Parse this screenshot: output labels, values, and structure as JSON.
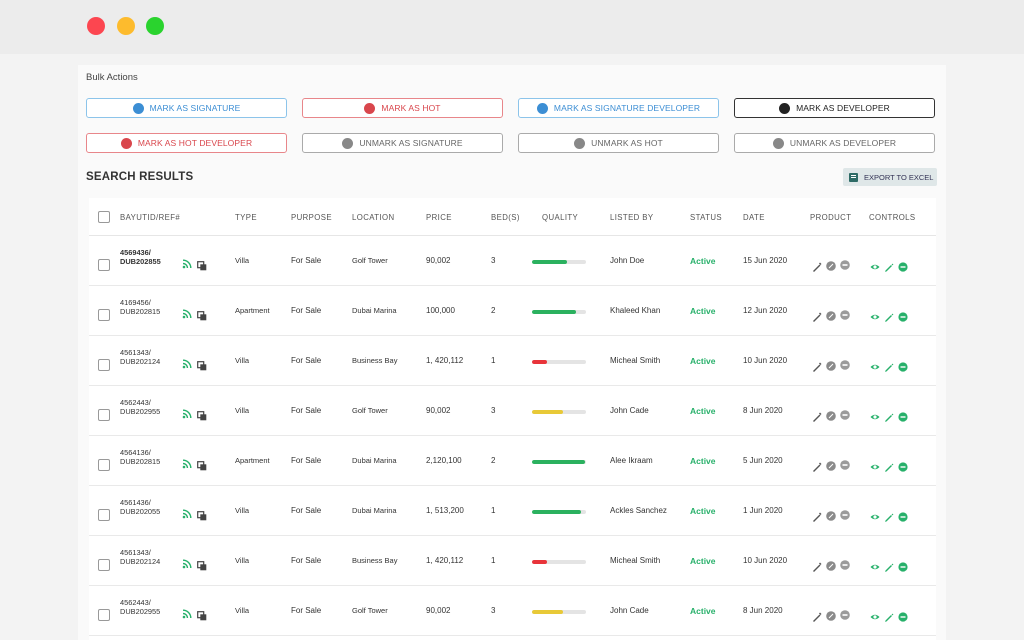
{
  "bulk": {
    "title": "Bulk Actions",
    "buttons": [
      {
        "label": "MARK AS SIGNATURE",
        "icon": "signature-icon",
        "style": "blue"
      },
      {
        "label": "MARK AS HOT",
        "icon": "hot-icon",
        "style": "red"
      },
      {
        "label": "MARK AS SIGNATURE DEVELOPER",
        "icon": "signature-developer-icon",
        "style": "blue"
      },
      {
        "label": "MARK AS DEVELOPER",
        "icon": "developer-icon",
        "style": "dark"
      },
      {
        "label": "MARK AS HOT DEVELOPER",
        "icon": "hot-developer-icon",
        "style": "red"
      },
      {
        "label": "UNMARK AS SIGNATURE",
        "icon": "signature-icon",
        "style": "gray"
      },
      {
        "label": "UNMARK AS HOT",
        "icon": "hot-icon",
        "style": "gray"
      },
      {
        "label": "UNMARK AS DEVELOPER",
        "icon": "developer-icon",
        "style": "gray"
      }
    ]
  },
  "results": {
    "title": "SEARCH RESULTS",
    "export_label": "EXPORT TO EXCEL"
  },
  "colors": {
    "quality_green": "#2bb15f",
    "quality_red": "#e8343a",
    "quality_yellow": "#e8c937",
    "status_active": "#27b06a",
    "blue": "#3c8ed4",
    "red": "#d9464c"
  },
  "columns": [
    "BAYUTID/REF#",
    "TYPE",
    "PURPOSE",
    "LOCATION",
    "PRICE",
    "BED(S)",
    "QUALITY",
    "LISTED BY",
    "STATUS",
    "DATE",
    "PRODUCT",
    "CONTROLS"
  ],
  "rows": [
    {
      "id": "4569436/",
      "ref": "DUB202855",
      "type": "Villa",
      "purpose": "For Sale",
      "location": "Golf Tower",
      "price": "90,002",
      "beds": "3",
      "quality": 0.65,
      "quality_color": "green",
      "listed_by": "John Doe",
      "status": "Active",
      "date": "15 Jun 2020"
    },
    {
      "id": "4169456/",
      "ref": "DUB202815",
      "type": "Apartment",
      "purpose": "For Sale",
      "location": "Dubai Marina",
      "price": "100,000",
      "beds": "2",
      "quality": 0.82,
      "quality_color": "green",
      "listed_by": "Khaleed Khan",
      "status": "Active",
      "date": "12 Jun 2020"
    },
    {
      "id": "4561343/",
      "ref": "DUB202124",
      "type": "Villa",
      "purpose": "For Sale",
      "location": "Business Bay",
      "price": "1, 420,112",
      "beds": "1",
      "quality": 0.27,
      "quality_color": "red",
      "listed_by": "Micheal Smith",
      "status": "Active",
      "date": "10 Jun 2020"
    },
    {
      "id": "4562443/",
      "ref": "DUB202955",
      "type": "Villa",
      "purpose": "For Sale",
      "location": "Golf Tower",
      "price": "90,002",
      "beds": "3",
      "quality": 0.57,
      "quality_color": "yellow",
      "listed_by": "John Cade",
      "status": "Active",
      "date": "8 Jun 2020"
    },
    {
      "id": "4564136/",
      "ref": "DUB202815",
      "type": "Apartment",
      "purpose": "For Sale",
      "location": "Dubai Marina",
      "price": "2,120,100",
      "beds": "2",
      "quality": 0.98,
      "quality_color": "green",
      "listed_by": "Alee Ikraam",
      "status": "Active",
      "date": "5 Jun 2020"
    },
    {
      "id": "4561436/",
      "ref": "DUB202055",
      "type": "Villa",
      "purpose": "For Sale",
      "location": "Dubai Marina",
      "price": "1, 513,200",
      "beds": "1",
      "quality": 0.9,
      "quality_color": "green",
      "listed_by": "Ackles Sanchez",
      "status": "Active",
      "date": "1 Jun 2020"
    },
    {
      "id": "4561343/",
      "ref": "DUB202124",
      "type": "Villa",
      "purpose": "For Sale",
      "location": "Business Bay",
      "price": "1, 420,112",
      "beds": "1",
      "quality": 0.27,
      "quality_color": "red",
      "listed_by": "Micheal Smith",
      "status": "Active",
      "date": "10 Jun 2020"
    },
    {
      "id": "4562443/",
      "ref": "DUB202955",
      "type": "Villa",
      "purpose": "For Sale",
      "location": "Golf Tower",
      "price": "90,002",
      "beds": "3",
      "quality": 0.57,
      "quality_color": "yellow",
      "listed_by": "John Cade",
      "status": "Active",
      "date": "8 Jun 2020"
    }
  ]
}
